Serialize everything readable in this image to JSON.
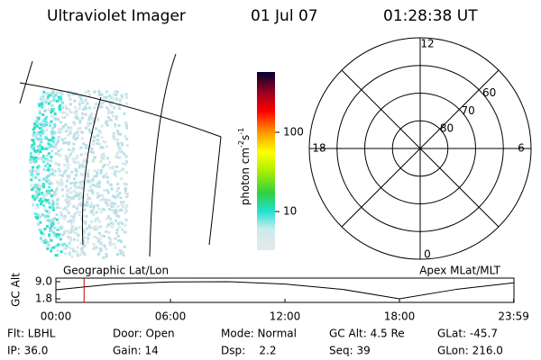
{
  "header": {
    "title": "Ultraviolet Imager",
    "date": "01 Jul 07",
    "time": "01:28:38 UT"
  },
  "image_panel": {
    "label": "Geographic Lat/Lon"
  },
  "colorbar": {
    "label": "photon cm",
    "label_exp1": "-2",
    "label_unit2": "s",
    "label_exp2": "-1",
    "scale": "log",
    "lim": [
      3.25,
      577
    ],
    "ticks": [
      10,
      100
    ]
  },
  "polar": {
    "label": "Apex MLat/MLT",
    "lat_lim": [
      90,
      50
    ],
    "lat_ticks": [
      80,
      70,
      60
    ],
    "mlt_ticks": [
      12,
      18,
      6,
      0
    ]
  },
  "chart_data": {
    "type": "line",
    "ylabel": "GC Alt",
    "x": [
      0,
      3,
      6,
      9,
      12,
      15,
      18,
      21,
      23.983
    ],
    "series": [
      {
        "color": "#000000",
        "values": [
          5.6,
          8.0,
          8.9,
          9.0,
          8.0,
          5.8,
          1.8,
          5.8,
          8.5
        ]
      }
    ],
    "xlim": [
      0,
      24
    ],
    "xticks": [
      {
        "value": 0,
        "label": "00:00"
      },
      {
        "value": 6,
        "label": "06:00"
      },
      {
        "value": 12,
        "label": "12:00"
      },
      {
        "value": 18,
        "label": "18:00"
      },
      {
        "value": 23.983,
        "label": "23:59"
      }
    ],
    "ylim": [
      0.3,
      10.5
    ],
    "yticks": [
      {
        "value": 9,
        "label": "9.0"
      },
      {
        "value": 1.8,
        "label": "1.8"
      }
    ],
    "marker_x": 1.4772,
    "marker_color": "#cc0000"
  },
  "info": [
    [
      "Flt: LBHL",
      "Door: Open",
      "Mode: Normal",
      "GC Alt: 4.5 Re",
      "GLat: -45.7"
    ],
    [
      "IP: 36.0",
      "Gain: 14",
      "Dsp:    2.2",
      "Seq: 39",
      "GLon: 216.0"
    ]
  ]
}
